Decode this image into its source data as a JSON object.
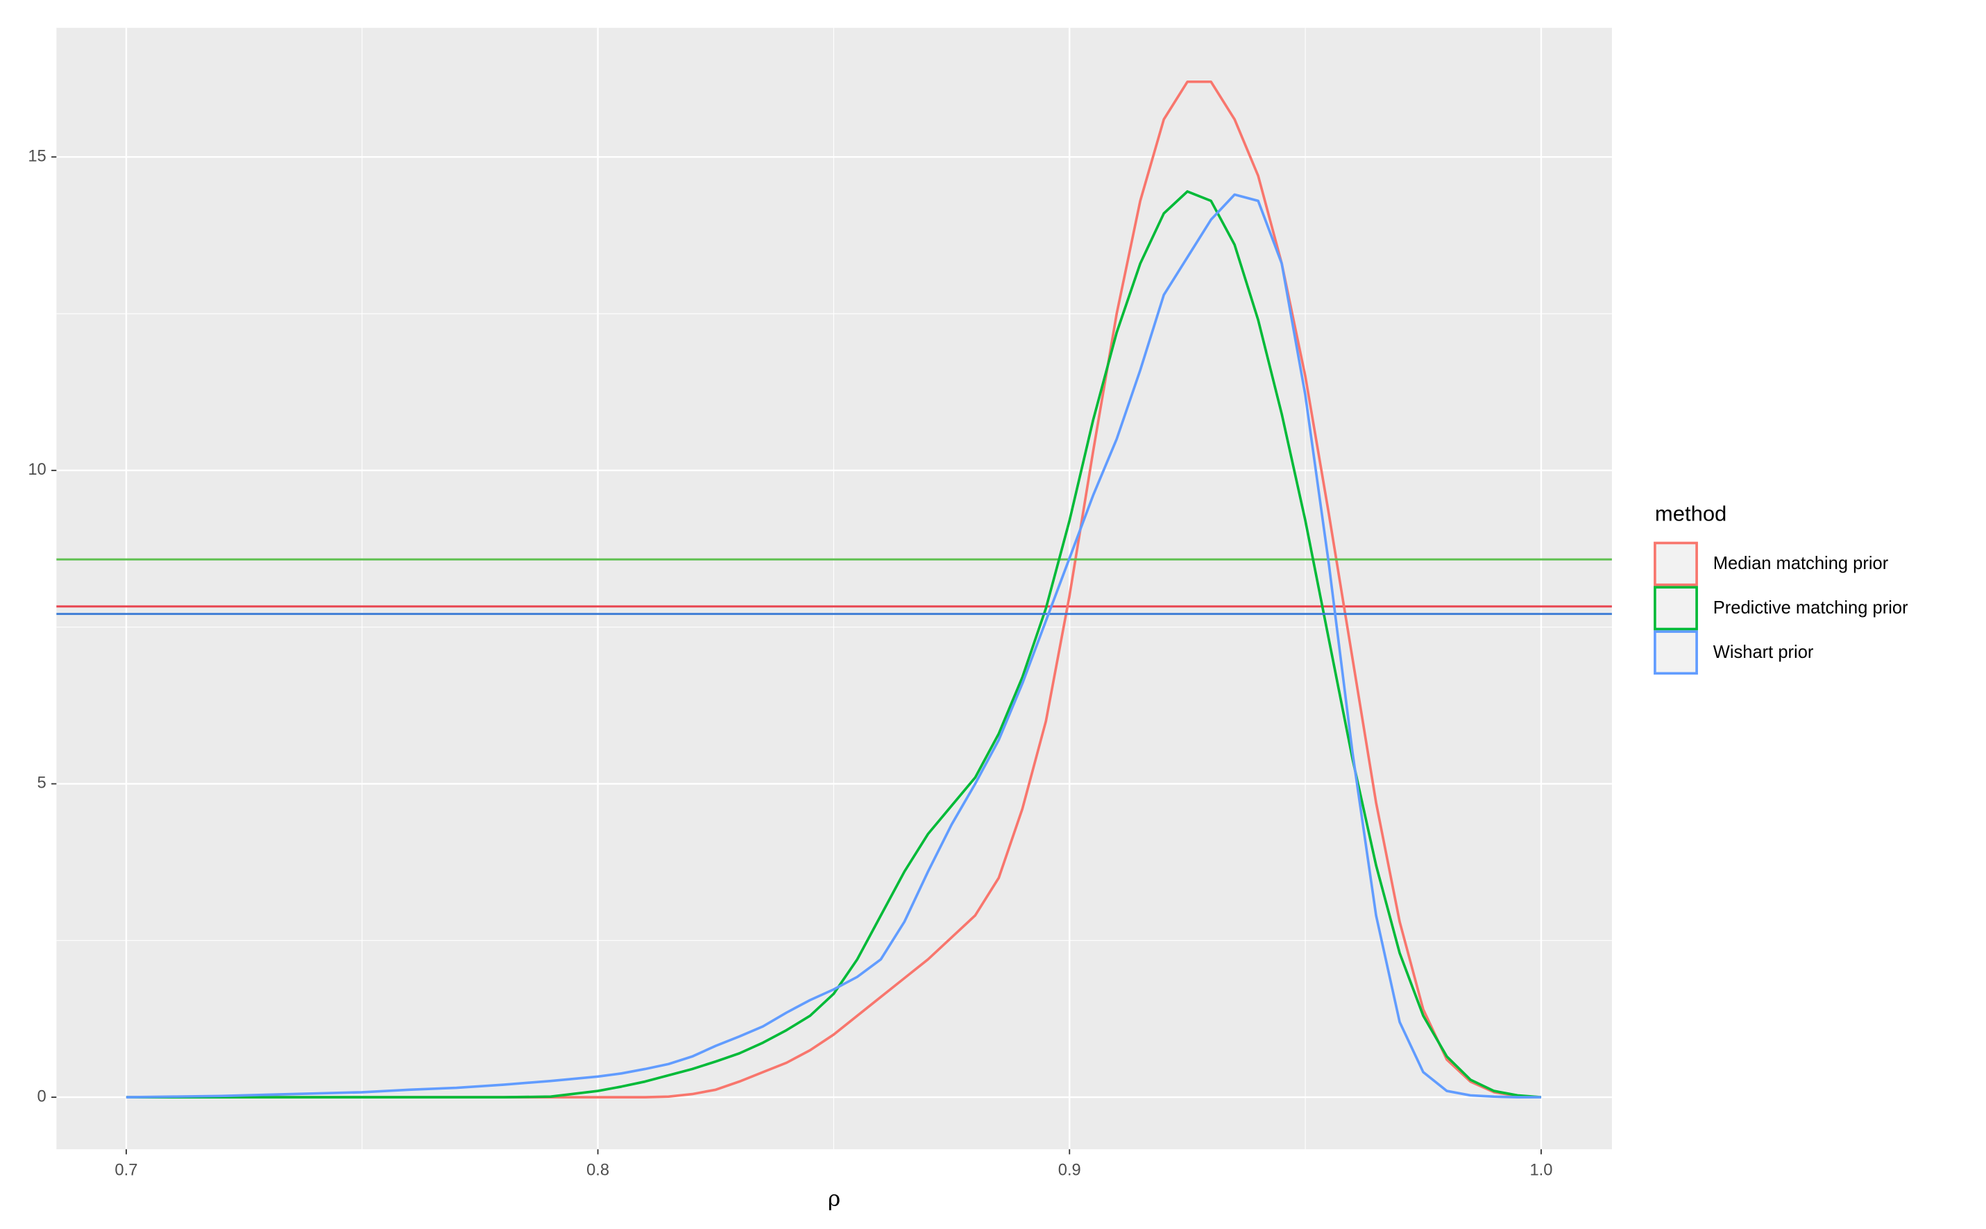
{
  "chart_data": {
    "type": "line",
    "x_label": "ρ",
    "legend_title": "method",
    "legend_position": "right",
    "grid": true,
    "xlim": [
      0.6852,
      1.015
    ],
    "ylim": [
      -0.83,
      17.06
    ],
    "xticks": [
      0.7,
      0.8,
      0.9,
      {
        "value": 1.0,
        "label": "1.0"
      }
    ],
    "yticks": [
      0,
      5,
      10,
      15
    ],
    "x_minor_grid": [
      0.75,
      0.85,
      0.95
    ],
    "y_minor_grid": [
      2.5,
      7.5,
      12.5
    ],
    "x": [
      0.7,
      0.71,
      0.72,
      0.73,
      0.74,
      0.75,
      0.76,
      0.77,
      0.78,
      0.79,
      0.8,
      0.805,
      0.81,
      0.815,
      0.82,
      0.825,
      0.83,
      0.835,
      0.84,
      0.845,
      0.85,
      0.855,
      0.86,
      0.865,
      0.87,
      0.875,
      0.88,
      0.885,
      0.89,
      0.895,
      0.9,
      0.905,
      0.91,
      0.915,
      0.92,
      0.925,
      0.93,
      0.935,
      0.94,
      0.945,
      0.95,
      0.955,
      0.96,
      0.965,
      0.97,
      0.975,
      0.98,
      0.985,
      0.99,
      0.995,
      1.0
    ],
    "series": [
      {
        "name": "Median matching prior",
        "color": "#F8766D",
        "hline": 7.83,
        "hline_color": "#E8434E",
        "values": [
          0,
          0,
          0,
          0,
          0,
          0,
          0,
          0,
          0,
          0,
          0,
          0,
          0,
          0.01,
          0.05,
          0.12,
          0.25,
          0.4,
          0.55,
          0.75,
          1.0,
          1.3,
          1.6,
          1.9,
          2.2,
          2.55,
          2.9,
          3.5,
          4.6,
          6.0,
          8.0,
          10.3,
          12.5,
          14.3,
          15.6,
          16.2,
          16.2,
          15.6,
          14.7,
          13.3,
          11.5,
          9.3,
          7.0,
          4.7,
          2.8,
          1.4,
          0.6,
          0.25,
          0.08,
          0.02,
          0
        ]
      },
      {
        "name": "Predictive matching prior",
        "color": "#00BA38",
        "hline": 8.58,
        "hline_color": "#5EC04F",
        "values": [
          0,
          0,
          0,
          0,
          0,
          0,
          0,
          0,
          0,
          0.01,
          0.1,
          0.17,
          0.25,
          0.35,
          0.45,
          0.57,
          0.7,
          0.87,
          1.07,
          1.3,
          1.65,
          2.2,
          2.9,
          3.6,
          4.2,
          4.65,
          5.1,
          5.8,
          6.7,
          7.8,
          9.2,
          10.8,
          12.2,
          13.3,
          14.1,
          14.45,
          14.3,
          13.6,
          12.4,
          10.9,
          9.2,
          7.3,
          5.4,
          3.7,
          2.3,
          1.3,
          0.65,
          0.28,
          0.1,
          0.03,
          0
        ]
      },
      {
        "name": "Wishart prior",
        "color": "#619CFF",
        "hline": 7.71,
        "hline_color": "#3A7BD5",
        "values": [
          0,
          0.01,
          0.02,
          0.04,
          0.06,
          0.08,
          0.12,
          0.15,
          0.2,
          0.26,
          0.33,
          0.38,
          0.45,
          0.53,
          0.65,
          0.82,
          0.97,
          1.13,
          1.35,
          1.55,
          1.72,
          1.92,
          2.2,
          2.8,
          3.6,
          4.35,
          5.0,
          5.7,
          6.6,
          7.6,
          8.6,
          9.6,
          10.5,
          11.6,
          12.8,
          13.4,
          14.0,
          14.4,
          14.3,
          13.3,
          11.2,
          8.5,
          5.5,
          2.9,
          1.2,
          0.4,
          0.1,
          0.03,
          0.01,
          0,
          0
        ]
      }
    ]
  }
}
